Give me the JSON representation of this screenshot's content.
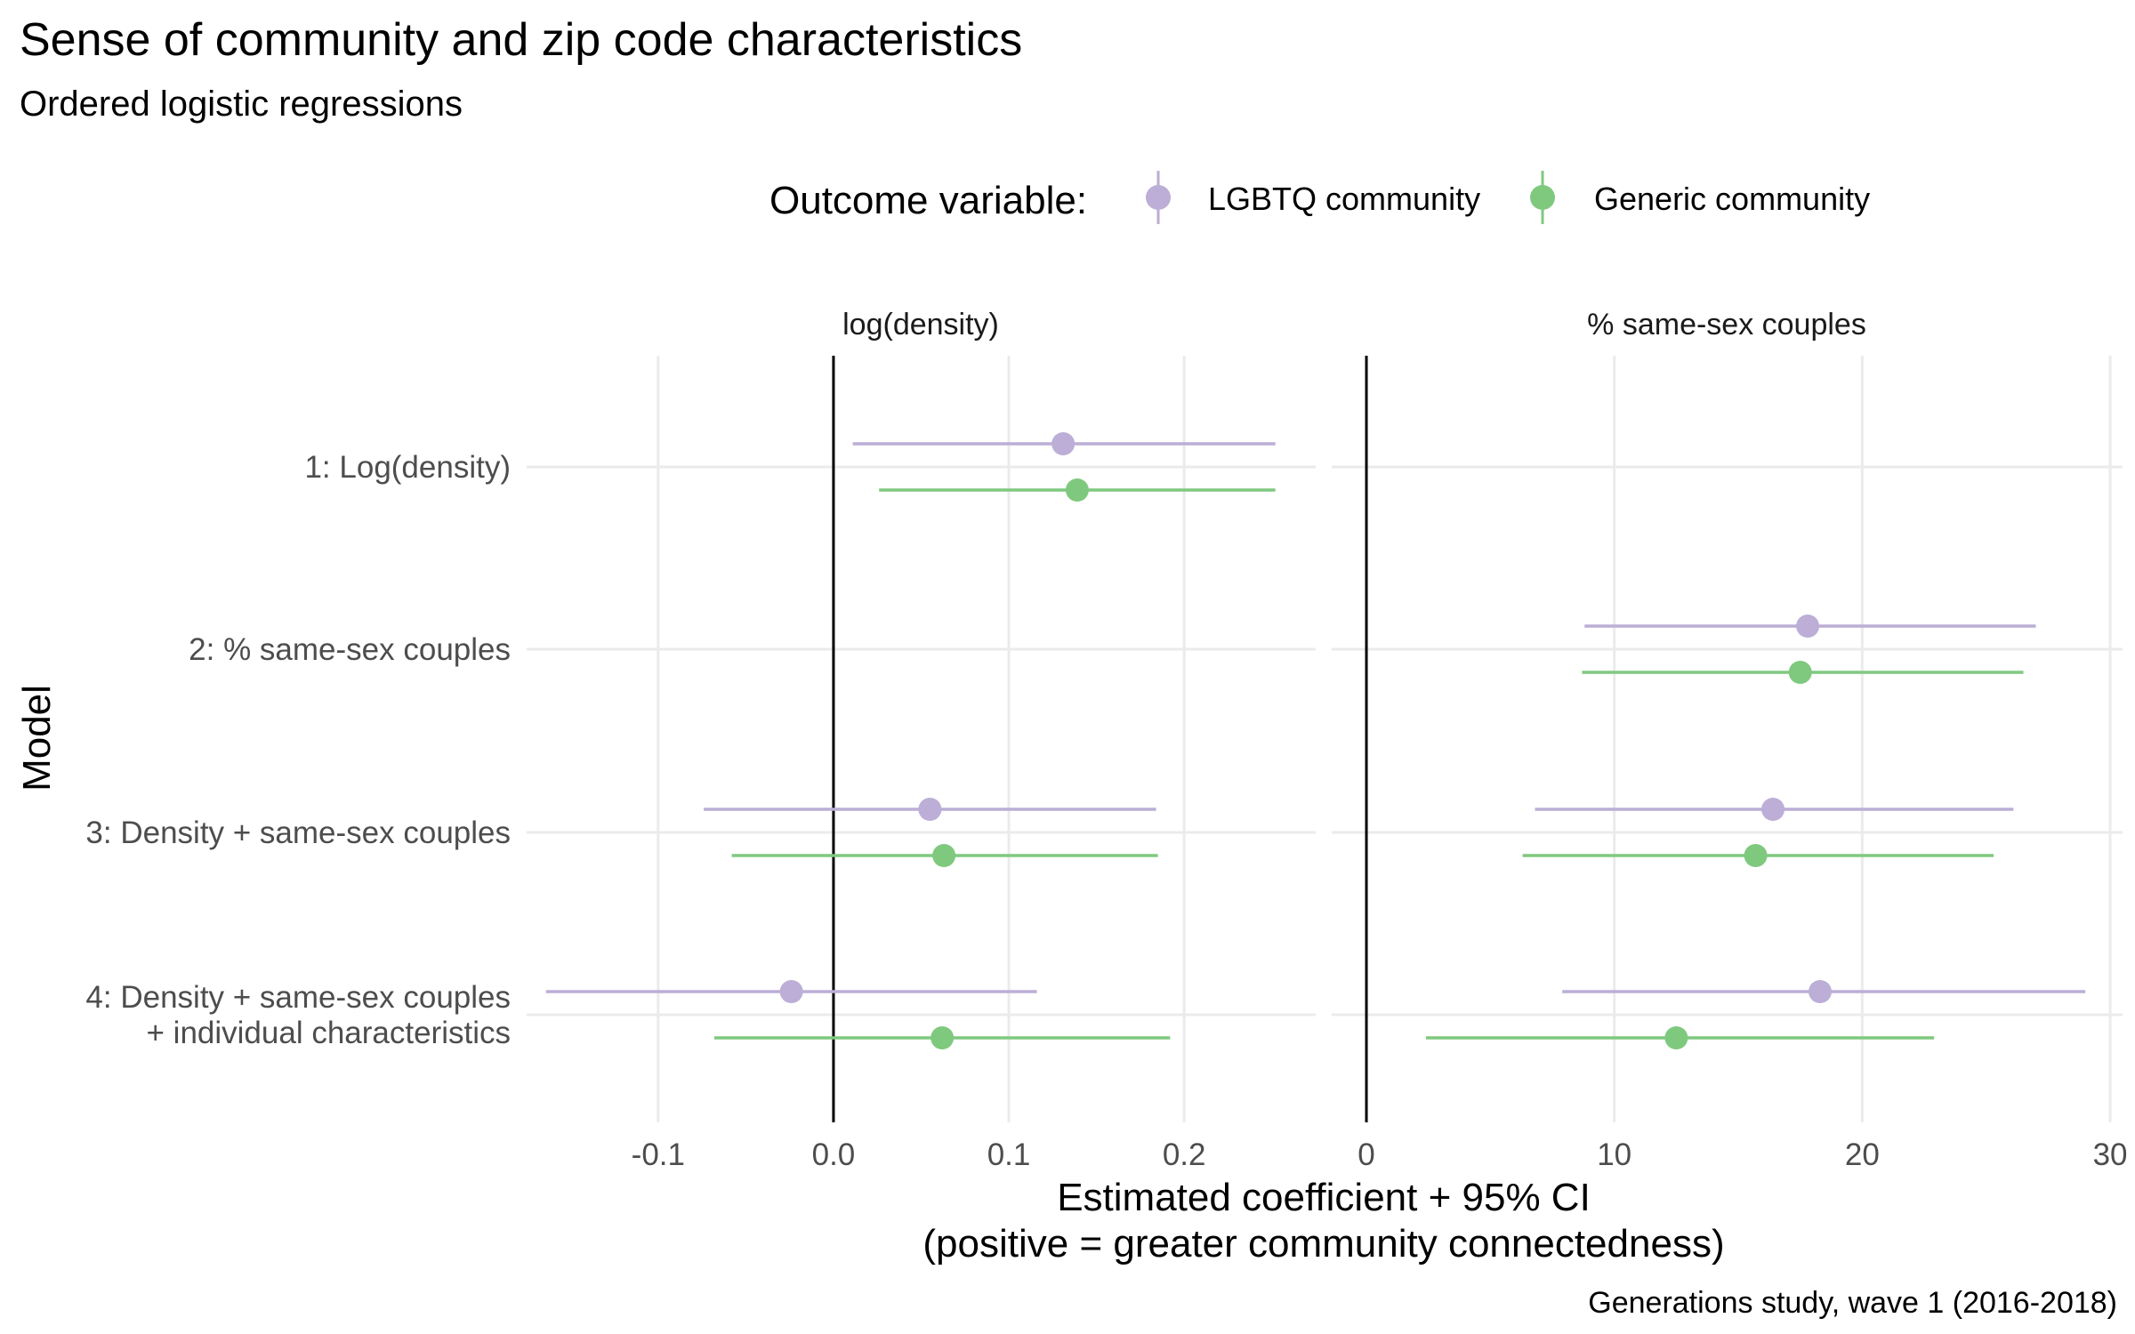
{
  "chart_data": {
    "type": "scatter",
    "title": "Sense of community and zip code characteristics",
    "subtitle": "Ordered logistic regressions",
    "legend": {
      "title": "Outcome variable:",
      "position": "top",
      "entries": [
        {
          "name": "LGBTQ community",
          "color": "#BCAED6"
        },
        {
          "name": "Generic community",
          "color": "#7FC97F"
        }
      ]
    },
    "ylabel": "Model",
    "xlabel_lines": [
      "Estimated coefficient + 95% CI",
      "(positive = greater community connectedness)"
    ],
    "caption": "Generations study, wave 1 (2016-2018)",
    "models": [
      {
        "lines": [
          "1: Log(density)"
        ]
      },
      {
        "lines": [
          "2: % same-sex couples"
        ]
      },
      {
        "lines": [
          "3: Density + same-sex couples"
        ]
      },
      {
        "lines": [
          "4: Density + same-sex couples",
          "+ individual characteristics"
        ]
      }
    ],
    "grid": true,
    "panels": [
      {
        "label": "log(density)",
        "xlim": [
          -0.175,
          0.275
        ],
        "ticks": [
          -0.1,
          0.0,
          0.1,
          0.2
        ],
        "tick_labels": [
          "-0.1",
          "0.0",
          "0.1",
          "0.2"
        ],
        "reference_line": 0,
        "series": [
          {
            "name": "LGBTQ community",
            "color": "#BCAED6",
            "points": [
              {
                "model": 0,
                "est": 0.131,
                "lo": 0.011,
                "hi": 0.252
              },
              {
                "model": 2,
                "est": 0.055,
                "lo": -0.074,
                "hi": 0.184
              },
              {
                "model": 3,
                "est": -0.024,
                "lo": -0.164,
                "hi": 0.116
              }
            ]
          },
          {
            "name": "Generic community",
            "color": "#7FC97F",
            "points": [
              {
                "model": 0,
                "est": 0.139,
                "lo": 0.026,
                "hi": 0.252
              },
              {
                "model": 2,
                "est": 0.063,
                "lo": -0.058,
                "hi": 0.185
              },
              {
                "model": 3,
                "est": 0.062,
                "lo": -0.068,
                "hi": 0.192
              }
            ]
          }
        ]
      },
      {
        "label": "% same-sex couples",
        "xlim": [
          -1.4,
          30.5
        ],
        "ticks": [
          0,
          10,
          20,
          30
        ],
        "tick_labels": [
          "0",
          "10",
          "20",
          "30"
        ],
        "reference_line": 0,
        "series": [
          {
            "name": "LGBTQ community",
            "color": "#BCAED6",
            "points": [
              {
                "model": 1,
                "est": 17.8,
                "lo": 8.8,
                "hi": 27.0
              },
              {
                "model": 2,
                "est": 16.4,
                "lo": 6.8,
                "hi": 26.1
              },
              {
                "model": 3,
                "est": 18.3,
                "lo": 7.9,
                "hi": 29.0
              }
            ]
          },
          {
            "name": "Generic community",
            "color": "#7FC97F",
            "points": [
              {
                "model": 1,
                "est": 17.5,
                "lo": 8.7,
                "hi": 26.5
              },
              {
                "model": 2,
                "est": 15.7,
                "lo": 6.3,
                "hi": 25.3
              },
              {
                "model": 3,
                "est": 12.5,
                "lo": 2.4,
                "hi": 22.9
              }
            ]
          }
        ]
      }
    ]
  }
}
